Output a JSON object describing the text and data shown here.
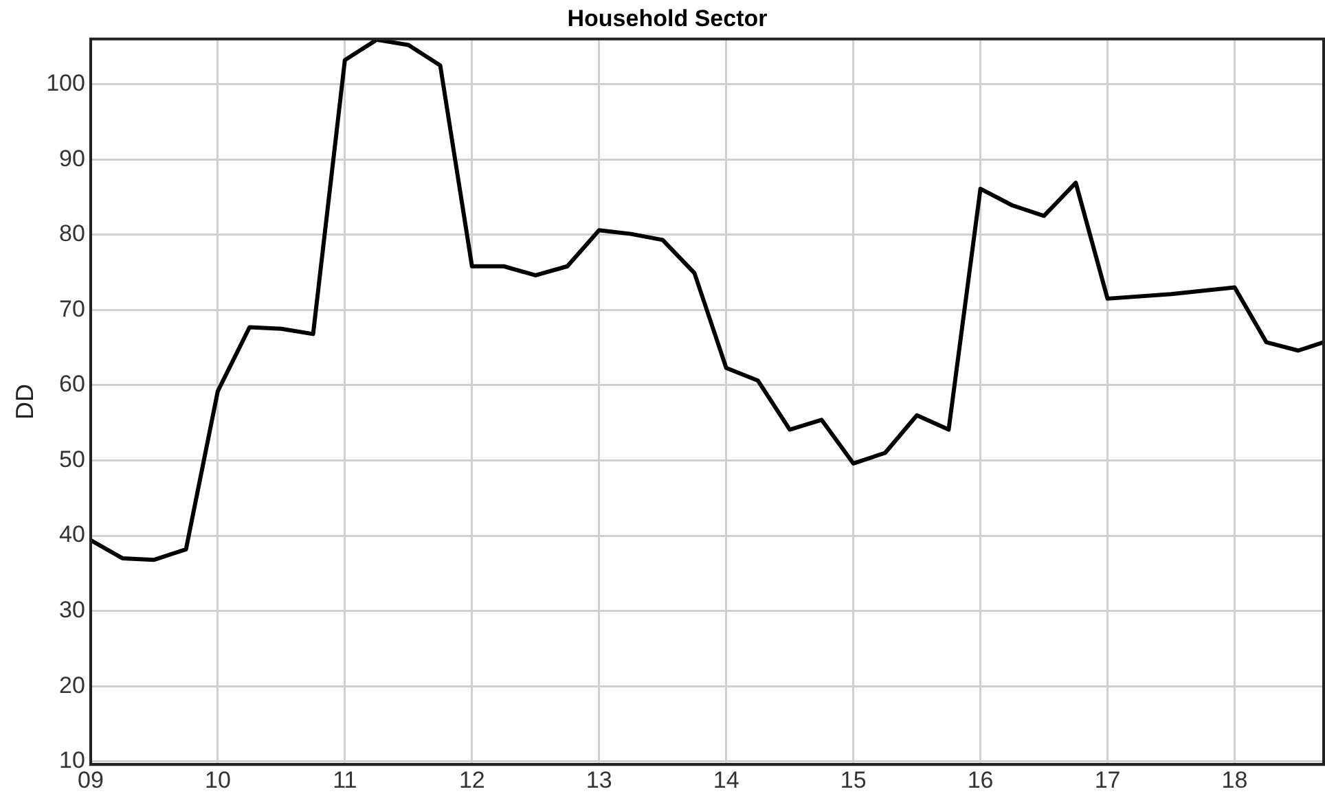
{
  "chart_data": {
    "type": "line",
    "title": "Household Sector",
    "ylabel": "DD",
    "x": [
      9,
      9.25,
      9.5,
      9.75,
      10,
      10.25,
      10.5,
      10.75,
      11,
      11.25,
      11.5,
      11.75,
      12,
      12.25,
      12.5,
      12.75,
      13,
      13.25,
      13.5,
      13.75,
      14,
      14.25,
      14.5,
      14.75,
      15,
      15.25,
      15.5,
      15.75,
      16,
      16.25,
      16.5,
      16.75,
      17,
      17.5,
      18,
      18.25,
      18.5,
      18.7
    ],
    "series": [
      {
        "color": "#000000",
        "values": [
          39.4,
          37.0,
          36.8,
          38.2,
          59.2,
          67.7,
          67.5,
          66.8,
          103.2,
          105.9,
          105.2,
          102.5,
          75.8,
          75.8,
          74.6,
          75.8,
          80.6,
          80.1,
          79.3,
          74.9,
          62.3,
          60.6,
          54.1,
          55.4,
          49.6,
          51.0,
          56.0,
          54.1,
          86.1,
          83.9,
          82.5,
          86.9,
          71.5,
          72.1,
          73.0,
          65.7,
          64.6,
          65.7
        ]
      }
    ],
    "xlim": [
      9,
      18.7
    ],
    "xticks": [
      {
        "value": 9,
        "label": "09"
      },
      {
        "value": 10,
        "label": "10"
      },
      {
        "value": 11,
        "label": "11"
      },
      {
        "value": 12,
        "label": "12"
      },
      {
        "value": 13,
        "label": "13"
      },
      {
        "value": 14,
        "label": "14"
      },
      {
        "value": 15,
        "label": "15"
      },
      {
        "value": 16,
        "label": "16"
      },
      {
        "value": 17,
        "label": "17"
      },
      {
        "value": 18,
        "label": "18"
      }
    ],
    "ylim": [
      9.6,
      106
    ],
    "yticks": [
      10,
      20,
      30,
      40,
      50,
      60,
      70,
      80,
      90,
      100
    ],
    "grid": true,
    "marker": "none",
    "line_style": "solid",
    "legend": false
  }
}
